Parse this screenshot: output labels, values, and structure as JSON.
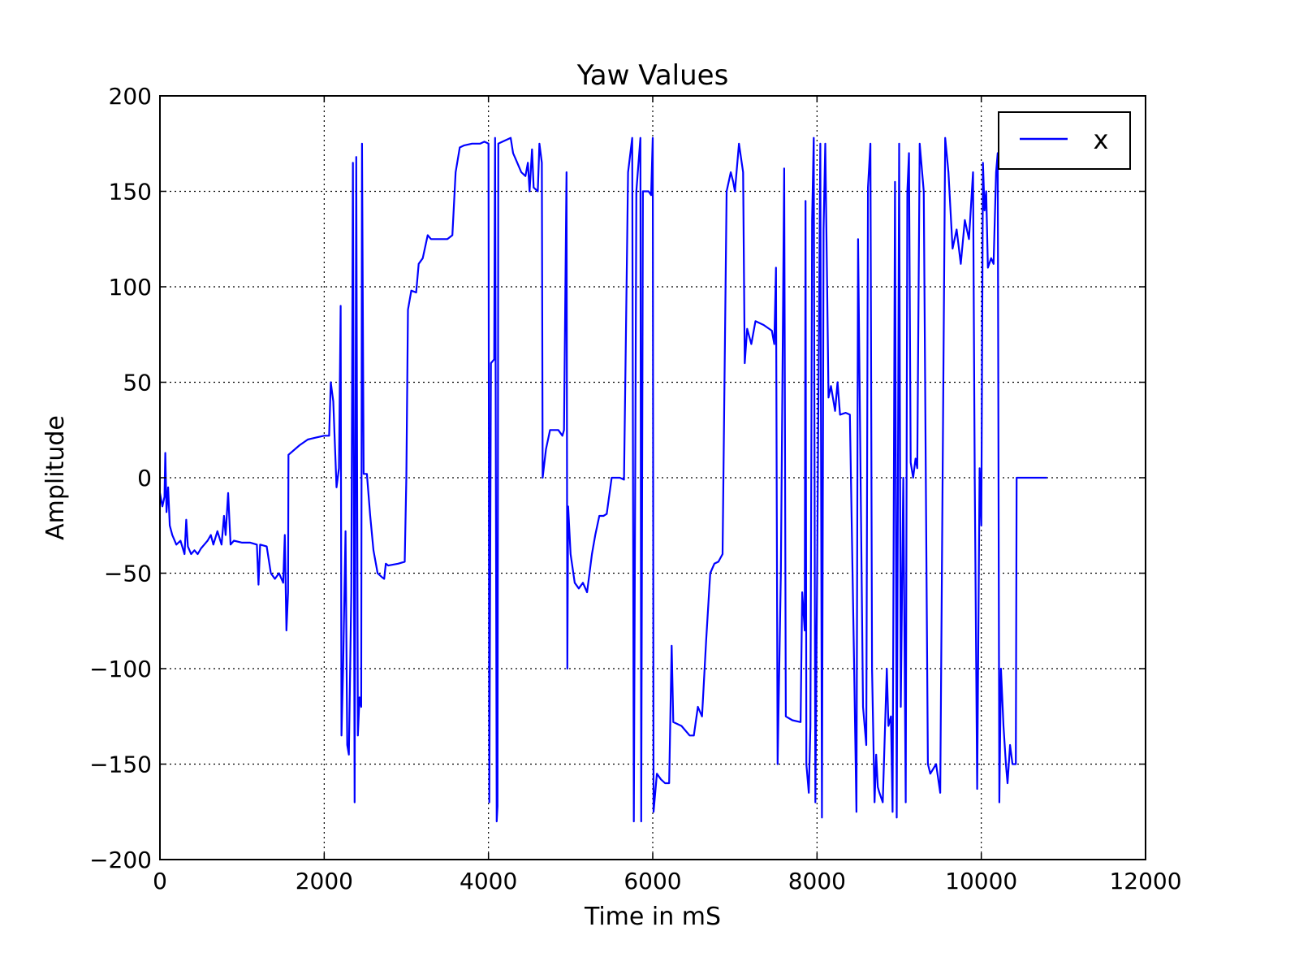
{
  "chart_data": {
    "type": "line",
    "title": "Yaw Values",
    "xlabel": "Time in mS",
    "ylabel": "Amplitude",
    "xlim": [
      0,
      12000
    ],
    "ylim": [
      -200,
      200
    ],
    "x_ticks": [
      0,
      2000,
      4000,
      6000,
      8000,
      10000,
      12000
    ],
    "x_tick_labels": [
      "0",
      "2000",
      "4000",
      "6000",
      "8000",
      "10000",
      "12000"
    ],
    "y_ticks": [
      200,
      150,
      100,
      50,
      0,
      -50,
      -100,
      -150,
      -200
    ],
    "y_tick_labels": [
      "200",
      "150",
      "100",
      "50",
      "0",
      "−50",
      "−100",
      "−150",
      "−200"
    ],
    "grid": true,
    "grid_style": "dotted",
    "legend_position": "top-right",
    "line_color": "#0000ff",
    "series": [
      {
        "name": "x",
        "color": "#0000ff",
        "points": [
          [
            0,
            -8
          ],
          [
            30,
            -15
          ],
          [
            55,
            -10
          ],
          [
            65,
            13
          ],
          [
            80,
            -18
          ],
          [
            100,
            -5
          ],
          [
            120,
            -25
          ],
          [
            150,
            -30
          ],
          [
            200,
            -35
          ],
          [
            250,
            -33
          ],
          [
            300,
            -40
          ],
          [
            320,
            -22
          ],
          [
            340,
            -36
          ],
          [
            380,
            -40
          ],
          [
            420,
            -38
          ],
          [
            460,
            -40
          ],
          [
            500,
            -37
          ],
          [
            540,
            -35
          ],
          [
            580,
            -33
          ],
          [
            620,
            -30
          ],
          [
            650,
            -35
          ],
          [
            700,
            -28
          ],
          [
            750,
            -35
          ],
          [
            780,
            -20
          ],
          [
            800,
            -30
          ],
          [
            830,
            -8
          ],
          [
            860,
            -35
          ],
          [
            900,
            -33
          ],
          [
            1000,
            -34
          ],
          [
            1100,
            -34
          ],
          [
            1180,
            -35
          ],
          [
            1200,
            -56
          ],
          [
            1220,
            -35
          ],
          [
            1300,
            -36
          ],
          [
            1350,
            -50
          ],
          [
            1400,
            -53
          ],
          [
            1450,
            -50
          ],
          [
            1500,
            -55
          ],
          [
            1520,
            -30
          ],
          [
            1540,
            -80
          ],
          [
            1560,
            -60
          ],
          [
            1565,
            12
          ],
          [
            1700,
            17
          ],
          [
            1800,
            20
          ],
          [
            1900,
            21
          ],
          [
            2000,
            22
          ],
          [
            2060,
            22
          ],
          [
            2080,
            50
          ],
          [
            2110,
            40
          ],
          [
            2150,
            -5
          ],
          [
            2180,
            5
          ],
          [
            2200,
            90
          ],
          [
            2210,
            -135
          ],
          [
            2230,
            -100
          ],
          [
            2260,
            -28
          ],
          [
            2280,
            -140
          ],
          [
            2300,
            -145
          ],
          [
            2330,
            -60
          ],
          [
            2350,
            165
          ],
          [
            2370,
            -170
          ],
          [
            2390,
            168
          ],
          [
            2410,
            -135
          ],
          [
            2430,
            -115
          ],
          [
            2450,
            -120
          ],
          [
            2460,
            175
          ],
          [
            2480,
            2
          ],
          [
            2520,
            2
          ],
          [
            2560,
            -20
          ],
          [
            2600,
            -38
          ],
          [
            2650,
            -50
          ],
          [
            2700,
            -52
          ],
          [
            2730,
            -53
          ],
          [
            2750,
            -45
          ],
          [
            2780,
            -46
          ],
          [
            2900,
            -45
          ],
          [
            2980,
            -44
          ],
          [
            3000,
            0
          ],
          [
            3020,
            88
          ],
          [
            3060,
            98
          ],
          [
            3120,
            97
          ],
          [
            3150,
            112
          ],
          [
            3200,
            115
          ],
          [
            3260,
            127
          ],
          [
            3300,
            125
          ],
          [
            3400,
            125
          ],
          [
            3500,
            125
          ],
          [
            3560,
            127
          ],
          [
            3600,
            160
          ],
          [
            3650,
            173
          ],
          [
            3700,
            174
          ],
          [
            3800,
            175
          ],
          [
            3900,
            175
          ],
          [
            3950,
            176
          ],
          [
            4000,
            175
          ],
          [
            4010,
            -170
          ],
          [
            4030,
            60
          ],
          [
            4070,
            62
          ],
          [
            4080,
            178
          ],
          [
            4100,
            -180
          ],
          [
            4110,
            -172
          ],
          [
            4120,
            175
          ],
          [
            4170,
            176
          ],
          [
            4270,
            178
          ],
          [
            4300,
            170
          ],
          [
            4350,
            165
          ],
          [
            4400,
            160
          ],
          [
            4450,
            158
          ],
          [
            4480,
            165
          ],
          [
            4500,
            150
          ],
          [
            4530,
            172
          ],
          [
            4550,
            152
          ],
          [
            4600,
            150
          ],
          [
            4620,
            175
          ],
          [
            4650,
            165
          ],
          [
            4660,
            0
          ],
          [
            4700,
            15
          ],
          [
            4750,
            25
          ],
          [
            4850,
            25
          ],
          [
            4900,
            22
          ],
          [
            4920,
            25
          ],
          [
            4950,
            160
          ],
          [
            4960,
            -100
          ],
          [
            4970,
            -15
          ],
          [
            5000,
            -40
          ],
          [
            5050,
            -55
          ],
          [
            5100,
            -58
          ],
          [
            5150,
            -55
          ],
          [
            5200,
            -60
          ],
          [
            5260,
            -40
          ],
          [
            5300,
            -30
          ],
          [
            5350,
            -20
          ],
          [
            5400,
            -20
          ],
          [
            5440,
            -19
          ],
          [
            5500,
            0
          ],
          [
            5600,
            0
          ],
          [
            5650,
            -1
          ],
          [
            5700,
            160
          ],
          [
            5750,
            178
          ],
          [
            5770,
            -180
          ],
          [
            5800,
            150
          ],
          [
            5850,
            178
          ],
          [
            5860,
            -180
          ],
          [
            5880,
            150
          ],
          [
            5950,
            150
          ],
          [
            5980,
            148
          ],
          [
            6000,
            178
          ],
          [
            6010,
            -175
          ],
          [
            6050,
            -155
          ],
          [
            6100,
            -158
          ],
          [
            6150,
            -160
          ],
          [
            6200,
            -160
          ],
          [
            6230,
            -88
          ],
          [
            6250,
            -128
          ],
          [
            6350,
            -130
          ],
          [
            6450,
            -135
          ],
          [
            6500,
            -135
          ],
          [
            6550,
            -120
          ],
          [
            6600,
            -125
          ],
          [
            6650,
            -85
          ],
          [
            6700,
            -50
          ],
          [
            6750,
            -45
          ],
          [
            6800,
            -44
          ],
          [
            6850,
            -40
          ],
          [
            6900,
            150
          ],
          [
            6950,
            160
          ],
          [
            6980,
            155
          ],
          [
            7000,
            150
          ],
          [
            7050,
            175
          ],
          [
            7100,
            160
          ],
          [
            7120,
            60
          ],
          [
            7150,
            78
          ],
          [
            7200,
            70
          ],
          [
            7250,
            82
          ],
          [
            7350,
            80
          ],
          [
            7450,
            77
          ],
          [
            7480,
            70
          ],
          [
            7500,
            110
          ],
          [
            7520,
            -150
          ],
          [
            7560,
            -50
          ],
          [
            7600,
            162
          ],
          [
            7620,
            -125
          ],
          [
            7700,
            -127
          ],
          [
            7800,
            -128
          ],
          [
            7820,
            -60
          ],
          [
            7850,
            -80
          ],
          [
            7860,
            145
          ],
          [
            7870,
            -150
          ],
          [
            7900,
            -165
          ],
          [
            7920,
            -130
          ],
          [
            7940,
            135
          ],
          [
            7960,
            178
          ],
          [
            7980,
            -170
          ],
          [
            8000,
            -60
          ],
          [
            8040,
            175
          ],
          [
            8060,
            -178
          ],
          [
            8080,
            130
          ],
          [
            8100,
            175
          ],
          [
            8120,
            110
          ],
          [
            8140,
            42
          ],
          [
            8170,
            48
          ],
          [
            8220,
            35
          ],
          [
            8250,
            50
          ],
          [
            8280,
            33
          ],
          [
            8350,
            34
          ],
          [
            8400,
            33
          ],
          [
            8450,
            -95
          ],
          [
            8480,
            -175
          ],
          [
            8500,
            125
          ],
          [
            8560,
            -120
          ],
          [
            8600,
            -140
          ],
          [
            8620,
            152
          ],
          [
            8650,
            175
          ],
          [
            8670,
            -100
          ],
          [
            8700,
            -170
          ],
          [
            8720,
            -145
          ],
          [
            8740,
            -162
          ],
          [
            8760,
            -165
          ],
          [
            8800,
            -170
          ],
          [
            8850,
            -100
          ],
          [
            8870,
            -130
          ],
          [
            8900,
            -125
          ],
          [
            8920,
            -175
          ],
          [
            8950,
            155
          ],
          [
            8970,
            -178
          ],
          [
            9000,
            175
          ],
          [
            9020,
            -120
          ],
          [
            9050,
            0
          ],
          [
            9080,
            -170
          ],
          [
            9100,
            150
          ],
          [
            9120,
            170
          ],
          [
            9140,
            8
          ],
          [
            9170,
            0
          ],
          [
            9200,
            10
          ],
          [
            9220,
            5
          ],
          [
            9250,
            175
          ],
          [
            9300,
            150
          ],
          [
            9350,
            -150
          ],
          [
            9380,
            -155
          ],
          [
            9450,
            -150
          ],
          [
            9500,
            -165
          ],
          [
            9560,
            178
          ],
          [
            9600,
            160
          ],
          [
            9650,
            120
          ],
          [
            9700,
            130
          ],
          [
            9750,
            112
          ],
          [
            9800,
            135
          ],
          [
            9850,
            125
          ],
          [
            9900,
            160
          ],
          [
            9920,
            0
          ],
          [
            9950,
            -163
          ],
          [
            9980,
            5
          ],
          [
            10000,
            -25
          ],
          [
            10020,
            165
          ],
          [
            10040,
            140
          ],
          [
            10060,
            150
          ],
          [
            10080,
            110
          ],
          [
            10120,
            115
          ],
          [
            10150,
            112
          ],
          [
            10180,
            160
          ],
          [
            10200,
            170
          ],
          [
            10220,
            -170
          ],
          [
            10240,
            -100
          ],
          [
            10270,
            -130
          ],
          [
            10300,
            -150
          ],
          [
            10320,
            -160
          ],
          [
            10350,
            -140
          ],
          [
            10380,
            -150
          ],
          [
            10420,
            -150
          ],
          [
            10430,
            0
          ],
          [
            10500,
            0
          ],
          [
            10600,
            0
          ],
          [
            10700,
            0
          ],
          [
            10800,
            0
          ]
        ]
      }
    ]
  }
}
